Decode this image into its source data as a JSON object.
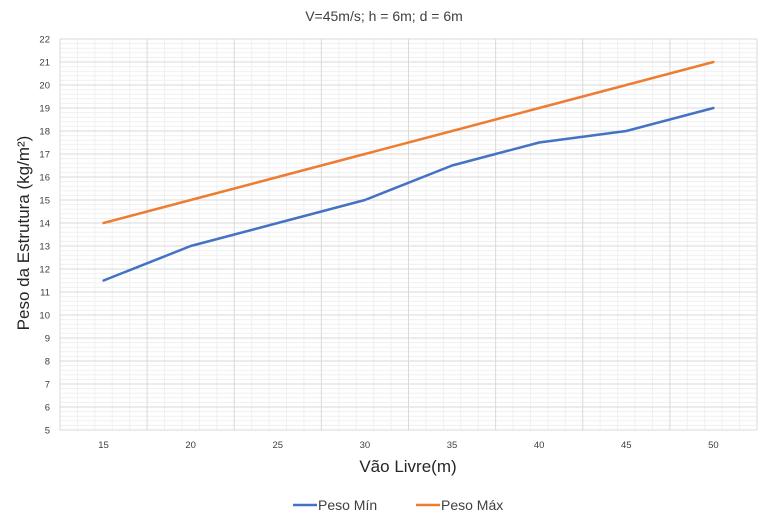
{
  "chart_data": {
    "type": "line",
    "title": "V=45m/s; h = 6m; d = 6m",
    "xlabel": "Vão Livre(m)",
    "ylabel": "Peso da Estrutura (kg/m²)",
    "categories": [
      "15",
      "20",
      "25",
      "30",
      "35",
      "40",
      "45",
      "50"
    ],
    "x": [
      15,
      20,
      25,
      30,
      35,
      40,
      45,
      50
    ],
    "ylim": [
      5,
      22
    ],
    "yticks": [
      "5",
      "6",
      "7",
      "8",
      "9",
      "10",
      "11",
      "12",
      "13",
      "14",
      "15",
      "16",
      "17",
      "18",
      "19",
      "20",
      "21",
      "22"
    ],
    "grid": true,
    "legend_position": "bottom",
    "series": [
      {
        "name": "Peso Mín",
        "color": "#4472C4",
        "values": [
          11.5,
          13,
          14,
          15,
          16.5,
          17.5,
          18,
          19
        ]
      },
      {
        "name": "Peso Máx",
        "color": "#ED7D31",
        "values": [
          14,
          15,
          16,
          17,
          18,
          19,
          20,
          21
        ]
      }
    ]
  }
}
